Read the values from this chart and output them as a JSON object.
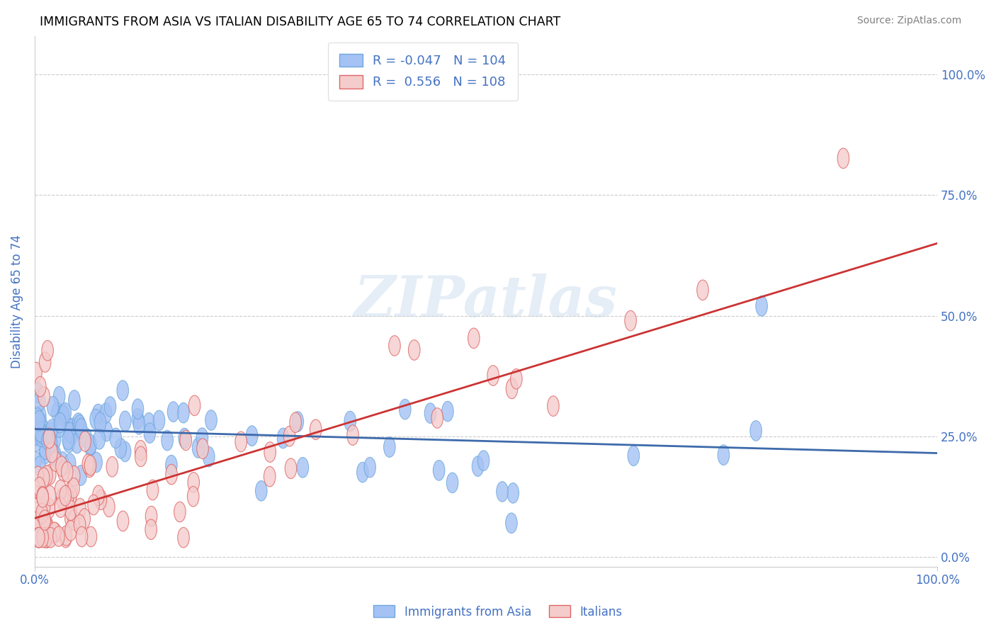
{
  "title": "IMMIGRANTS FROM ASIA VS ITALIAN DISABILITY AGE 65 TO 74 CORRELATION CHART",
  "source_text": "Source: ZipAtlas.com",
  "ylabel": "Disability Age 65 to 74",
  "xlim": [
    0.0,
    1.0
  ],
  "ylim": [
    -0.02,
    1.08
  ],
  "yticks": [
    0.0,
    0.25,
    0.5,
    0.75,
    1.0
  ],
  "ytick_labels": [
    "0.0%",
    "25.0%",
    "50.0%",
    "75.0%",
    "100.0%"
  ],
  "xtick_labels": [
    "0.0%",
    "100.0%"
  ],
  "blue_R": -0.047,
  "blue_N": 104,
  "pink_R": 0.556,
  "pink_N": 108,
  "blue_color": "#6fa8dc",
  "pink_color": "#e06666",
  "blue_fill": "#a4c2f4",
  "pink_fill": "#f4cccc",
  "blue_line_color": "#3d6aab",
  "pink_line_color": "#cc3333",
  "legend_label_blue": "Immigrants from Asia",
  "legend_label_pink": "Italians",
  "watermark": "ZIPatlas",
  "title_color": "#000000",
  "axis_label_color": "#4472c4",
  "legend_text_color": "#4472c4",
  "background_color": "#ffffff",
  "blue_trend_x": [
    0.0,
    1.0
  ],
  "blue_trend_y": [
    0.265,
    0.215
  ],
  "pink_trend_x": [
    0.0,
    1.0
  ],
  "pink_trend_y": [
    0.08,
    0.65
  ]
}
